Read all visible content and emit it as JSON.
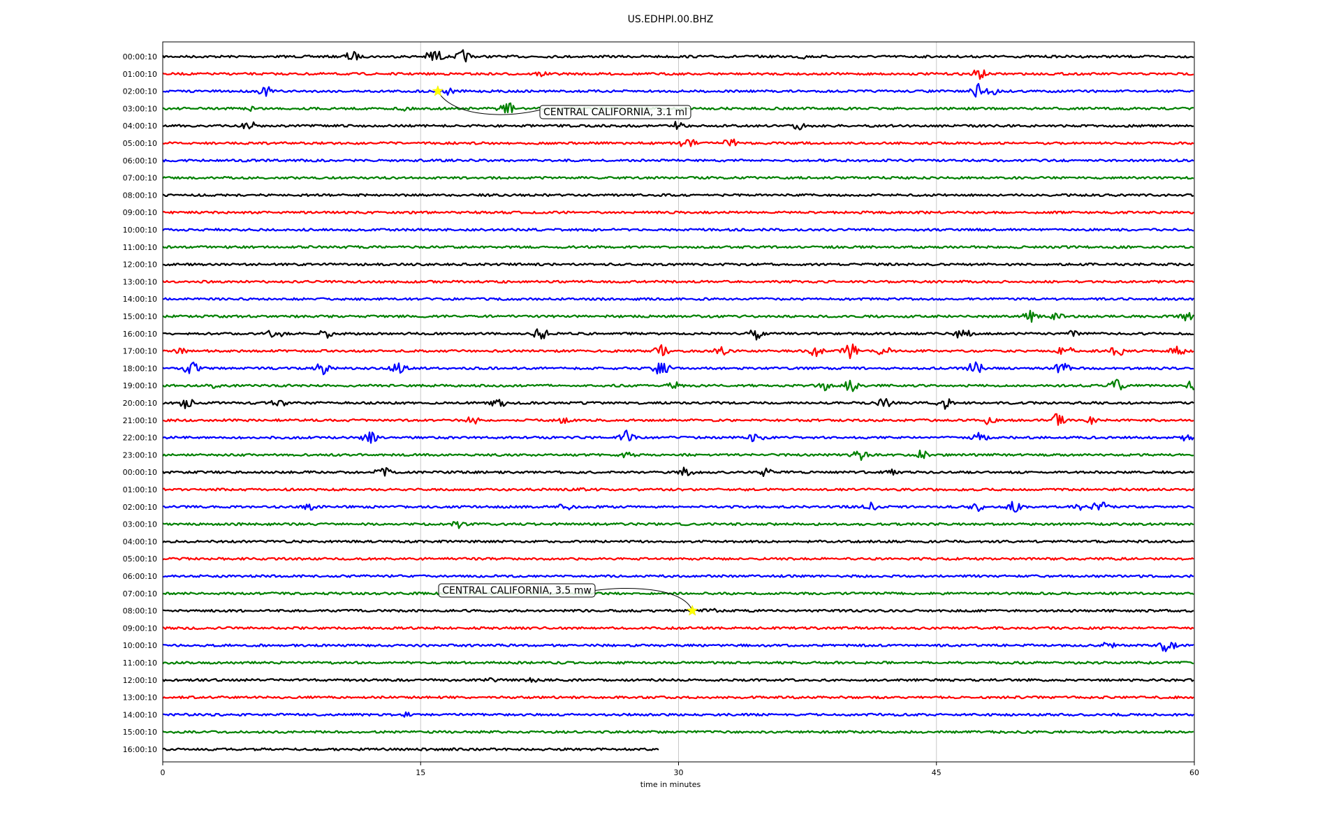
{
  "chart_data": {
    "type": "line",
    "title": "US.EDHPI.00.BHZ",
    "xlabel": "time in minutes",
    "ylabel": "",
    "xlim": [
      0,
      60
    ],
    "x_ticks": [
      "0",
      "15",
      "30",
      "45",
      "60"
    ],
    "grid": "vertical lines at 15, 30 and 45 minutes",
    "trace_colors": [
      "#000000",
      "#ff0000",
      "#0000ff",
      "#008000"
    ],
    "row_labels": [
      "00:00:10",
      "01:00:10",
      "02:00:10",
      "03:00:10",
      "04:00:10",
      "05:00:10",
      "06:00:10",
      "07:00:10",
      "08:00:10",
      "09:00:10",
      "10:00:10",
      "11:00:10",
      "12:00:10",
      "13:00:10",
      "14:00:10",
      "15:00:10",
      "16:00:10",
      "17:00:10",
      "18:00:10",
      "19:00:10",
      "20:00:10",
      "21:00:10",
      "22:00:10",
      "23:00:10",
      "00:00:10",
      "01:00:10",
      "02:00:10",
      "03:00:10",
      "04:00:10",
      "05:00:10",
      "06:00:10",
      "07:00:10",
      "08:00:10",
      "09:00:10",
      "10:00:10",
      "11:00:10",
      "12:00:10",
      "13:00:10",
      "14:00:10",
      "15:00:10",
      "16:00:10"
    ],
    "last_trace_end_minute": 28.9,
    "events": [
      {
        "label": "CENTRAL CALIFORNIA, 3.1 ml",
        "row": 2,
        "minute": 16.0
      },
      {
        "label": "CENTRAL CALIFORNIA, 3.5 mw",
        "row": 32,
        "minute": 30.8
      }
    ],
    "bursts": [
      {
        "row": 0,
        "minute": 15.8,
        "amp": 14
      },
      {
        "row": 0,
        "minute": 17.5,
        "amp": 10
      },
      {
        "row": 0,
        "minute": 11,
        "amp": 9
      },
      {
        "row": 0,
        "minute": 37.2,
        "amp": 4
      },
      {
        "row": 1,
        "minute": 47.5,
        "amp": 9
      },
      {
        "row": 1,
        "minute": 22,
        "amp": 5
      },
      {
        "row": 2,
        "minute": 6,
        "amp": 8
      },
      {
        "row": 2,
        "minute": 16.5,
        "amp": 7
      },
      {
        "row": 2,
        "minute": 47.5,
        "amp": 12
      },
      {
        "row": 2,
        "minute": 48.2,
        "amp": 8
      },
      {
        "row": 3,
        "minute": 5.2,
        "amp": 5
      },
      {
        "row": 3,
        "minute": 14,
        "amp": 5
      },
      {
        "row": 3,
        "minute": 20,
        "amp": 12
      },
      {
        "row": 4,
        "minute": 5,
        "amp": 10
      },
      {
        "row": 4,
        "minute": 30,
        "amp": 8
      },
      {
        "row": 4,
        "minute": 37,
        "amp": 6
      },
      {
        "row": 5,
        "minute": 30.5,
        "amp": 10
      },
      {
        "row": 5,
        "minute": 33,
        "amp": 8
      },
      {
        "row": 15,
        "minute": 50.5,
        "amp": 9
      },
      {
        "row": 15,
        "minute": 52,
        "amp": 6
      },
      {
        "row": 15,
        "minute": 59.5,
        "amp": 8
      },
      {
        "row": 16,
        "minute": 6.5,
        "amp": 9
      },
      {
        "row": 16,
        "minute": 9.5,
        "amp": 7
      },
      {
        "row": 16,
        "minute": 22,
        "amp": 10
      },
      {
        "row": 16,
        "minute": 34.5,
        "amp": 10
      },
      {
        "row": 16,
        "minute": 46.5,
        "amp": 10
      },
      {
        "row": 16,
        "minute": 53,
        "amp": 7
      },
      {
        "row": 17,
        "minute": 1,
        "amp": 5
      },
      {
        "row": 17,
        "minute": 29,
        "amp": 9
      },
      {
        "row": 17,
        "minute": 32.5,
        "amp": 7
      },
      {
        "row": 17,
        "minute": 38,
        "amp": 9
      },
      {
        "row": 17,
        "minute": 40,
        "amp": 12
      },
      {
        "row": 17,
        "minute": 42,
        "amp": 9
      },
      {
        "row": 17,
        "minute": 52.5,
        "amp": 9
      },
      {
        "row": 17,
        "minute": 55.5,
        "amp": 9
      },
      {
        "row": 17,
        "minute": 59,
        "amp": 9
      },
      {
        "row": 18,
        "minute": 1.7,
        "amp": 12
      },
      {
        "row": 18,
        "minute": 9.3,
        "amp": 10
      },
      {
        "row": 18,
        "minute": 13.7,
        "amp": 10
      },
      {
        "row": 18,
        "minute": 29,
        "amp": 12
      },
      {
        "row": 18,
        "minute": 47.3,
        "amp": 12
      },
      {
        "row": 18,
        "minute": 52.3,
        "amp": 10
      },
      {
        "row": 19,
        "minute": 3,
        "amp": 4
      },
      {
        "row": 19,
        "minute": 29.8,
        "amp": 7
      },
      {
        "row": 19,
        "minute": 38.5,
        "amp": 8
      },
      {
        "row": 19,
        "minute": 40,
        "amp": 10
      },
      {
        "row": 19,
        "minute": 55.5,
        "amp": 9
      },
      {
        "row": 19,
        "minute": 59.8,
        "amp": 9
      },
      {
        "row": 20,
        "minute": 1.4,
        "amp": 10
      },
      {
        "row": 20,
        "minute": 6.8,
        "amp": 9
      },
      {
        "row": 20,
        "minute": 19.5,
        "amp": 8
      },
      {
        "row": 20,
        "minute": 42,
        "amp": 9
      },
      {
        "row": 20,
        "minute": 45.5,
        "amp": 9
      },
      {
        "row": 21,
        "minute": 18,
        "amp": 9
      },
      {
        "row": 21,
        "minute": 23.2,
        "amp": 6
      },
      {
        "row": 21,
        "minute": 48,
        "amp": 7
      },
      {
        "row": 21,
        "minute": 52,
        "amp": 10
      },
      {
        "row": 21,
        "minute": 54,
        "amp": 6
      },
      {
        "row": 22,
        "minute": 12,
        "amp": 10
      },
      {
        "row": 22,
        "minute": 27,
        "amp": 12
      },
      {
        "row": 22,
        "minute": 34.5,
        "amp": 8
      },
      {
        "row": 22,
        "minute": 47.5,
        "amp": 8
      },
      {
        "row": 22,
        "minute": 59.5,
        "amp": 6
      },
      {
        "row": 23,
        "minute": 27,
        "amp": 7
      },
      {
        "row": 23,
        "minute": 40.5,
        "amp": 9
      },
      {
        "row": 23,
        "minute": 44.2,
        "amp": 9
      },
      {
        "row": 24,
        "minute": 12.8,
        "amp": 9
      },
      {
        "row": 24,
        "minute": 30.5,
        "amp": 10
      },
      {
        "row": 24,
        "minute": 35,
        "amp": 7
      },
      {
        "row": 24,
        "minute": 42.5,
        "amp": 6
      },
      {
        "row": 25,
        "minute": 24.5,
        "amp": 4
      },
      {
        "row": 26,
        "minute": 8.5,
        "amp": 6
      },
      {
        "row": 26,
        "minute": 23.5,
        "amp": 8
      },
      {
        "row": 26,
        "minute": 41.2,
        "amp": 8
      },
      {
        "row": 26,
        "minute": 47.3,
        "amp": 8
      },
      {
        "row": 26,
        "minute": 49.5,
        "amp": 9
      },
      {
        "row": 26,
        "minute": 53.5,
        "amp": 7
      },
      {
        "row": 26,
        "minute": 54.5,
        "amp": 10
      },
      {
        "row": 27,
        "minute": 17.2,
        "amp": 7
      },
      {
        "row": 32,
        "minute": 31.8,
        "amp": 5
      },
      {
        "row": 34,
        "minute": 55,
        "amp": 6
      },
      {
        "row": 34,
        "minute": 58.5,
        "amp": 14
      },
      {
        "row": 36,
        "minute": 19.2,
        "amp": 5
      },
      {
        "row": 36,
        "minute": 21.5,
        "amp": 4
      },
      {
        "row": 38,
        "minute": 14.2,
        "amp": 4
      }
    ]
  }
}
